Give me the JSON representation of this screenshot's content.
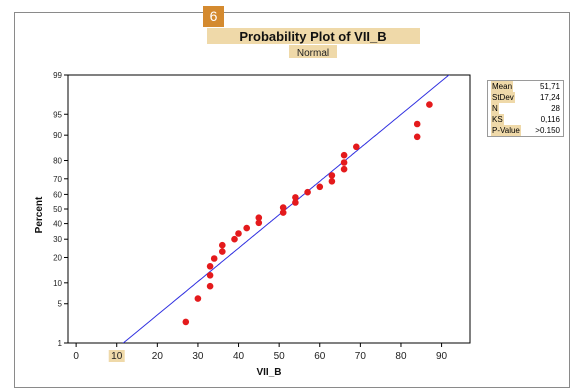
{
  "badge": "6",
  "chart_data": {
    "type": "scatter",
    "title": "Probability Plot of VII_B",
    "subtitle": "Normal",
    "xlabel": "VII_B",
    "ylabel": "Percent",
    "x_ticks": [
      0,
      10,
      20,
      30,
      40,
      50,
      60,
      70,
      80,
      90
    ],
    "y_ticks": [
      1,
      5,
      10,
      20,
      30,
      40,
      50,
      60,
      70,
      80,
      90,
      95,
      99
    ],
    "xlim": [
      -2,
      97
    ],
    "ylim": [
      1,
      99
    ],
    "y_scale": "normal-probability",
    "fit_line": {
      "mean": 51.71,
      "stdev": 17.24,
      "color": "#3030e0"
    },
    "point_color": "#e41a1c",
    "points": [
      [
        27,
        2.5
      ],
      [
        30,
        6
      ],
      [
        33,
        9
      ],
      [
        33,
        12.5
      ],
      [
        33,
        16
      ],
      [
        34,
        19.5
      ],
      [
        36,
        23
      ],
      [
        36,
        26.5
      ],
      [
        39,
        30
      ],
      [
        40,
        33.5
      ],
      [
        42,
        37
      ],
      [
        45,
        40.5
      ],
      [
        45,
        44
      ],
      [
        51,
        47.5
      ],
      [
        51,
        51
      ],
      [
        54,
        54.5
      ],
      [
        54,
        58
      ],
      [
        57,
        61.5
      ],
      [
        60,
        65
      ],
      [
        63,
        68.5
      ],
      [
        63,
        72
      ],
      [
        66,
        75.5
      ],
      [
        66,
        79
      ],
      [
        66,
        82.5
      ],
      [
        69,
        86
      ],
      [
        84,
        89.5
      ],
      [
        84,
        93
      ],
      [
        87,
        96.5
      ]
    ],
    "stats": [
      {
        "label": "Mean",
        "value": "51,71"
      },
      {
        "label": "StDev",
        "value": "17,24"
      },
      {
        "label": "N",
        "value": "28"
      },
      {
        "label": "KS",
        "value": "0,116"
      },
      {
        "label": "P-Value",
        "value": ">0.150"
      }
    ]
  }
}
